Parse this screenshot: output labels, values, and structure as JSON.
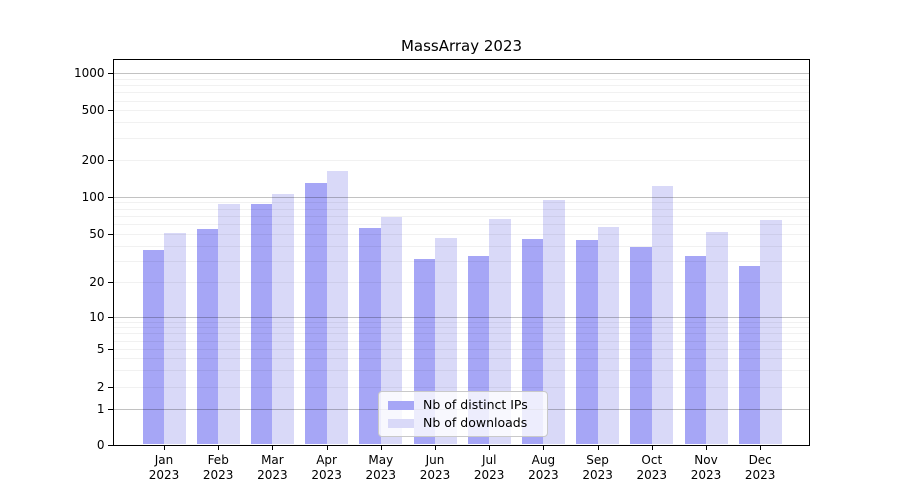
{
  "title": "MassArray 2023",
  "chart_data": {
    "type": "bar",
    "title": "MassArray 2023",
    "xlabel": "",
    "ylabel": "",
    "yscale": "symlog",
    "ylim": [
      0,
      1300
    ],
    "grid": true,
    "legend_position": "lower center",
    "y_ticks": [
      0,
      1,
      2,
      5,
      10,
      20,
      50,
      100,
      200,
      500,
      1000
    ],
    "x_tick_labels": [
      [
        "Jan",
        "2023"
      ],
      [
        "Feb",
        "2023"
      ],
      [
        "Mar",
        "2023"
      ],
      [
        "Apr",
        "2023"
      ],
      [
        "May",
        "2023"
      ],
      [
        "Jun",
        "2023"
      ],
      [
        "Jul",
        "2023"
      ],
      [
        "Aug",
        "2023"
      ],
      [
        "Sep",
        "2023"
      ],
      [
        "Oct",
        "2023"
      ],
      [
        "Nov",
        "2023"
      ],
      [
        "Dec",
        "2023"
      ]
    ],
    "series": [
      {
        "name": "Nb of distinct IPs",
        "color": "#a6a6f6",
        "values": [
          37,
          55,
          88,
          130,
          56,
          31,
          33,
          45,
          44,
          39,
          33,
          27
        ]
      },
      {
        "name": "Nb of downloads",
        "color": "#d9d9f8",
        "values": [
          51,
          88,
          105,
          163,
          68,
          46,
          66,
          94,
          57,
          122,
          52,
          65
        ]
      }
    ]
  },
  "colors": {
    "major_gridline": "#c4c4c4",
    "minor_gridline": "#efefef",
    "axis": "#000000",
    "background": "#ffffff"
  }
}
